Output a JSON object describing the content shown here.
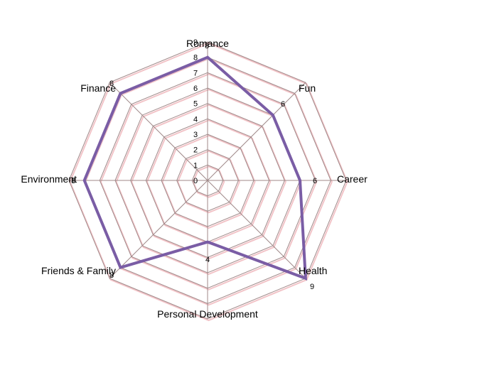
{
  "chart_data": {
    "type": "radar",
    "categories": [
      "Romance",
      "Fun",
      "Career",
      "Health",
      "Personal Development",
      "Friends & Family",
      "Environment",
      "Finance"
    ],
    "series": [
      {
        "values": [
          8,
          6,
          6,
          9,
          4,
          8,
          8,
          8
        ],
        "color": "#7a5da5"
      }
    ],
    "radial_axis": {
      "min": 0,
      "max": 9,
      "step": 1,
      "ticks": [
        "0",
        "1",
        "2",
        "3",
        "4",
        "5",
        "6",
        "7",
        "8",
        "9"
      ]
    },
    "data_labels": [
      "8",
      "6",
      "6",
      "9",
      "4",
      "8",
      "8",
      "8"
    ],
    "grid": true,
    "grid_color": "#a08a8a",
    "grid_shadow_color": "#f2c4c8",
    "legend": "none"
  }
}
